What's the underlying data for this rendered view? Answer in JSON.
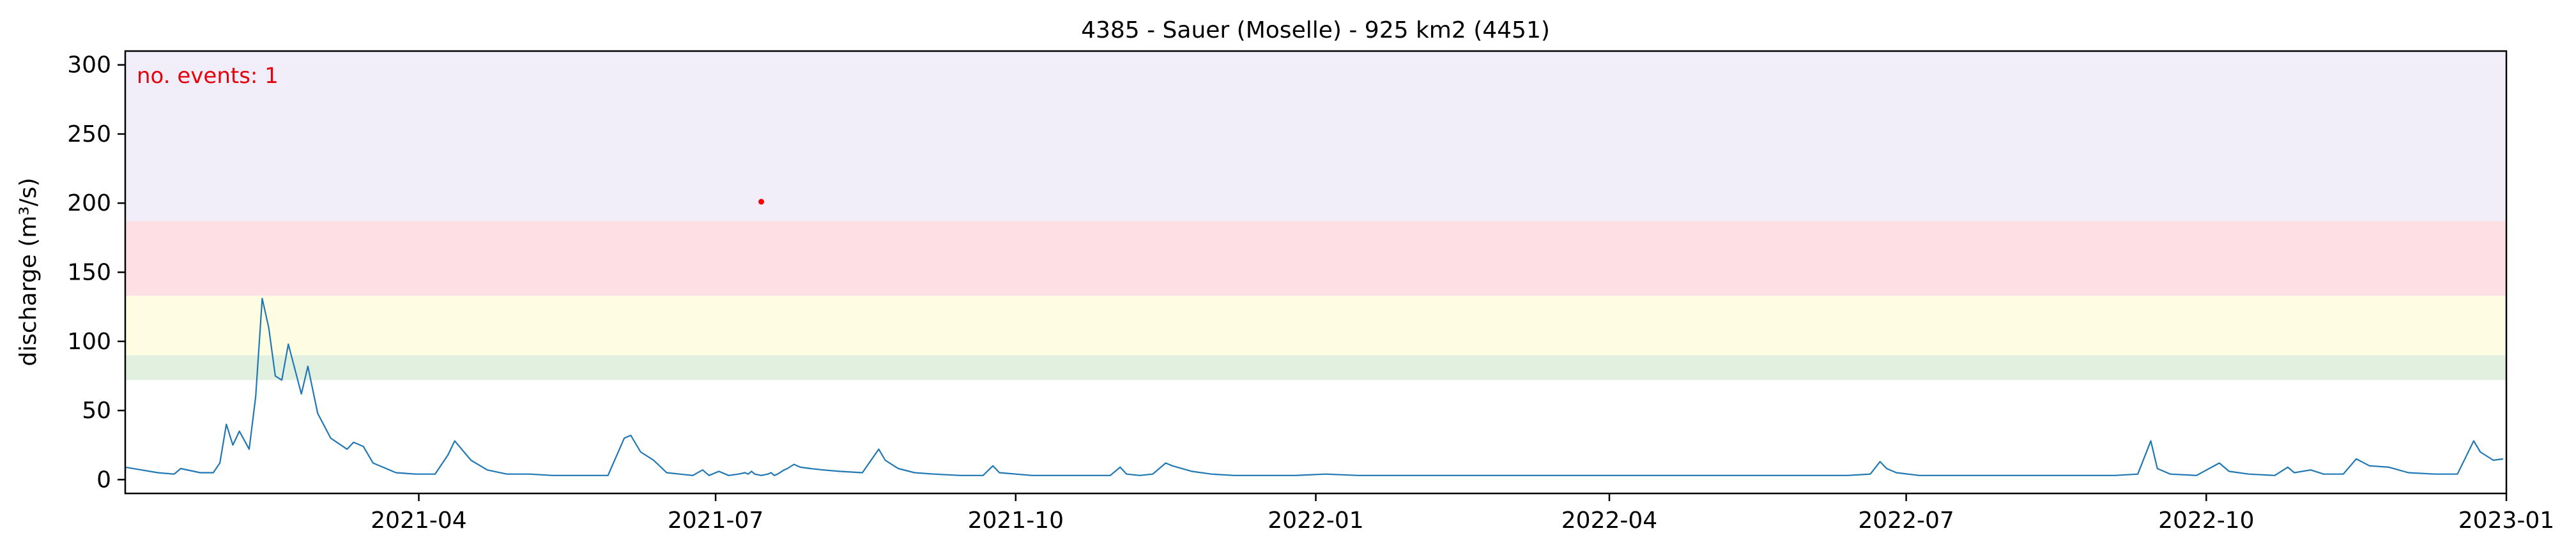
{
  "chart_data": {
    "type": "line",
    "title": "4385 - Sauer (Moselle) - 925 km2 (4451)",
    "xlabel": "",
    "ylabel": "discharge (m³/s)",
    "xlim": [
      "2021-01-01",
      "2023-01-01"
    ],
    "ylim": [
      -10,
      310
    ],
    "yticks": [
      0,
      50,
      100,
      150,
      200,
      250,
      300
    ],
    "xticks": [
      "2021-04",
      "2021-07",
      "2021-10",
      "2022-01",
      "2022-04",
      "2022-07",
      "2022-10",
      "2023-01"
    ],
    "grid": false,
    "annotation": "no. events: 1",
    "threshold_bands": [
      {
        "from": 72,
        "to": 90,
        "color": "#e2f0e0"
      },
      {
        "from": 90,
        "to": 133,
        "color": "#fefde2"
      },
      {
        "from": 133,
        "to": 187,
        "color": "#fee0e4"
      },
      {
        "from": 187,
        "to": 310,
        "color": "#f1eefa"
      }
    ],
    "series": [
      {
        "color": "#1f77b4",
        "points": [
          [
            "2021-01-01",
            9
          ],
          [
            "2021-01-06",
            7
          ],
          [
            "2021-01-11",
            5
          ],
          [
            "2021-01-16",
            4
          ],
          [
            "2021-01-18",
            8
          ],
          [
            "2021-01-24",
            5
          ],
          [
            "2021-01-28",
            5
          ],
          [
            "2021-01-30",
            12
          ],
          [
            "2021-02-01",
            40
          ],
          [
            "2021-02-03",
            25
          ],
          [
            "2021-02-05",
            35
          ],
          [
            "2021-02-08",
            22
          ],
          [
            "2021-02-10",
            60
          ],
          [
            "2021-02-12",
            131
          ],
          [
            "2021-02-14",
            110
          ],
          [
            "2021-02-16",
            75
          ],
          [
            "2021-02-18",
            72
          ],
          [
            "2021-02-20",
            98
          ],
          [
            "2021-02-22",
            80
          ],
          [
            "2021-02-24",
            62
          ],
          [
            "2021-02-26",
            82
          ],
          [
            "2021-03-01",
            48
          ],
          [
            "2021-03-05",
            30
          ],
          [
            "2021-03-10",
            22
          ],
          [
            "2021-03-12",
            27
          ],
          [
            "2021-03-15",
            24
          ],
          [
            "2021-03-18",
            12
          ],
          [
            "2021-03-22",
            8
          ],
          [
            "2021-03-25",
            5
          ],
          [
            "2021-03-31",
            4
          ],
          [
            "2021-04-06",
            4
          ],
          [
            "2021-04-10",
            18
          ],
          [
            "2021-04-12",
            28
          ],
          [
            "2021-04-17",
            14
          ],
          [
            "2021-04-22",
            7
          ],
          [
            "2021-04-28",
            4
          ],
          [
            "2021-05-05",
            4
          ],
          [
            "2021-05-12",
            3
          ],
          [
            "2021-05-20",
            3
          ],
          [
            "2021-05-29",
            3
          ],
          [
            "2021-06-03",
            30
          ],
          [
            "2021-06-05",
            32
          ],
          [
            "2021-06-08",
            20
          ],
          [
            "2021-06-12",
            14
          ],
          [
            "2021-06-16",
            5
          ],
          [
            "2021-06-20",
            4
          ],
          [
            "2021-06-24",
            3
          ],
          [
            "2021-06-27",
            7
          ],
          [
            "2021-06-29",
            3
          ],
          [
            "2021-07-02",
            6
          ],
          [
            "2021-07-05",
            3
          ],
          [
            "2021-07-08",
            4
          ],
          [
            "2021-07-10",
            5
          ],
          [
            "2021-07-11",
            4
          ],
          [
            "2021-07-12",
            6
          ],
          [
            "2021-07-13",
            4
          ],
          [
            "2021-07-15",
            3
          ],
          [
            "2021-07-17",
            4
          ],
          [
            "2021-07-18",
            5
          ],
          [
            "2021-07-19",
            3
          ],
          [
            "2021-07-20",
            4
          ],
          [
            "2021-07-22",
            7
          ],
          [
            "2021-07-23",
            8
          ],
          [
            "2021-07-25",
            11
          ],
          [
            "2021-07-27",
            9
          ],
          [
            "2021-07-30",
            8
          ],
          [
            "2021-08-03",
            7
          ],
          [
            "2021-08-08",
            6
          ],
          [
            "2021-08-15",
            5
          ],
          [
            "2021-08-20",
            22
          ],
          [
            "2021-08-22",
            14
          ],
          [
            "2021-08-26",
            8
          ],
          [
            "2021-08-31",
            5
          ],
          [
            "2021-09-06",
            4
          ],
          [
            "2021-09-14",
            3
          ],
          [
            "2021-09-21",
            3
          ],
          [
            "2021-09-24",
            10
          ],
          [
            "2021-09-26",
            5
          ],
          [
            "2021-10-06",
            3
          ],
          [
            "2021-10-20",
            3
          ],
          [
            "2021-10-30",
            3
          ],
          [
            "2021-11-02",
            9
          ],
          [
            "2021-11-04",
            4
          ],
          [
            "2021-11-08",
            3
          ],
          [
            "2021-11-12",
            4
          ],
          [
            "2021-11-16",
            12
          ],
          [
            "2021-11-18",
            10
          ],
          [
            "2021-11-24",
            6
          ],
          [
            "2021-11-30",
            4
          ],
          [
            "2021-12-07",
            3
          ],
          [
            "2021-12-16",
            3
          ],
          [
            "2021-12-26",
            3
          ],
          [
            "2022-01-04",
            4
          ],
          [
            "2022-01-14",
            3
          ],
          [
            "2022-01-24",
            3
          ],
          [
            "2022-02-03",
            3
          ],
          [
            "2022-02-13",
            3
          ],
          [
            "2022-02-23",
            3
          ],
          [
            "2022-03-05",
            3
          ],
          [
            "2022-03-15",
            3
          ],
          [
            "2022-03-25",
            3
          ],
          [
            "2022-04-04",
            3
          ],
          [
            "2022-04-14",
            3
          ],
          [
            "2022-04-24",
            3
          ],
          [
            "2022-05-04",
            3
          ],
          [
            "2022-05-14",
            3
          ],
          [
            "2022-05-24",
            3
          ],
          [
            "2022-06-03",
            3
          ],
          [
            "2022-06-13",
            3
          ],
          [
            "2022-06-20",
            4
          ],
          [
            "2022-06-23",
            13
          ],
          [
            "2022-06-25",
            8
          ],
          [
            "2022-06-28",
            5
          ],
          [
            "2022-07-05",
            3
          ],
          [
            "2022-07-15",
            3
          ],
          [
            "2022-07-25",
            3
          ],
          [
            "2022-08-04",
            3
          ],
          [
            "2022-08-14",
            3
          ],
          [
            "2022-08-24",
            3
          ],
          [
            "2022-09-03",
            3
          ],
          [
            "2022-09-10",
            4
          ],
          [
            "2022-09-14",
            28
          ],
          [
            "2022-09-16",
            8
          ],
          [
            "2022-09-20",
            4
          ],
          [
            "2022-09-28",
            3
          ],
          [
            "2022-10-05",
            12
          ],
          [
            "2022-10-08",
            6
          ],
          [
            "2022-10-14",
            4
          ],
          [
            "2022-10-22",
            3
          ],
          [
            "2022-10-26",
            9
          ],
          [
            "2022-10-28",
            5
          ],
          [
            "2022-11-02",
            7
          ],
          [
            "2022-11-06",
            4
          ],
          [
            "2022-11-12",
            4
          ],
          [
            "2022-11-16",
            15
          ],
          [
            "2022-11-20",
            10
          ],
          [
            "2022-11-26",
            9
          ],
          [
            "2022-12-02",
            5
          ],
          [
            "2022-12-10",
            4
          ],
          [
            "2022-12-17",
            4
          ],
          [
            "2022-12-22",
            28
          ],
          [
            "2022-12-24",
            20
          ],
          [
            "2022-12-28",
            14
          ],
          [
            "2022-12-31",
            15
          ]
        ]
      }
    ],
    "events": [
      {
        "x": "2021-07-15",
        "y": 201,
        "color": "#ff0000"
      }
    ]
  }
}
